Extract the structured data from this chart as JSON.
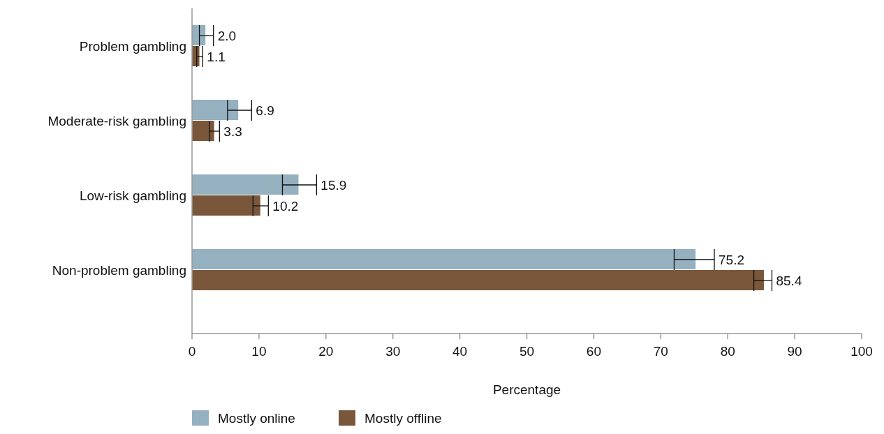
{
  "chart_data": {
    "type": "bar",
    "orientation": "horizontal",
    "xlabel": "Percentage",
    "categories": [
      "Problem gambling",
      "Moderate-risk gambling",
      "Low-risk gambling",
      "Non-problem gambling"
    ],
    "series": [
      {
        "name": "Mostly online",
        "color": "#95b0bf",
        "values": [
          2.0,
          6.9,
          15.9,
          75.2
        ],
        "value_labels": [
          "2.0",
          "6.9",
          "15.9",
          "75.2"
        ],
        "errors": [
          [
            1.1,
            3.2
          ],
          [
            5.3,
            8.9
          ],
          [
            13.5,
            18.6
          ],
          [
            72.0,
            78.0
          ]
        ]
      },
      {
        "name": "Mostly offline",
        "color": "#7a573b",
        "values": [
          1.1,
          3.3,
          10.2,
          85.4
        ],
        "value_labels": [
          "1.1",
          "3.3",
          "10.2",
          "85.4"
        ],
        "errors": [
          [
            0.7,
            1.6
          ],
          [
            2.6,
            4.1
          ],
          [
            9.1,
            11.4
          ],
          [
            83.9,
            86.6
          ]
        ]
      }
    ],
    "xlim": [
      0,
      100
    ],
    "xticks": [
      0,
      10,
      20,
      30,
      40,
      50,
      60,
      70,
      80,
      90,
      100
    ],
    "legend": "bottom left",
    "grid": false
  }
}
